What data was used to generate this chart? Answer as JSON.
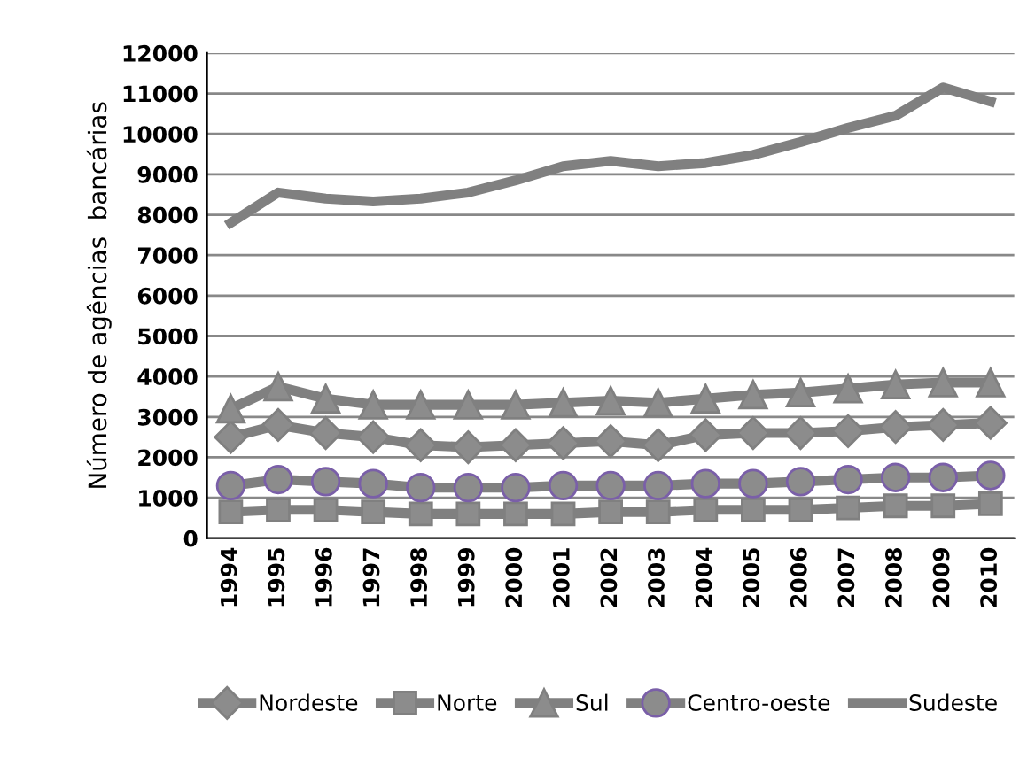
{
  "chart_data": {
    "type": "line",
    "ylabel": "Número de agências  bancárias",
    "categories": [
      "1994",
      "1995",
      "1996",
      "1997",
      "1998",
      "1999",
      "2000",
      "2001",
      "2002",
      "2003",
      "2004",
      "2005",
      "2006",
      "2007",
      "2008",
      "2009",
      "2010"
    ],
    "series": [
      {
        "name": "Nordeste",
        "color": "#808080",
        "marker": "diamond",
        "values": [
          2500,
          2800,
          2600,
          2500,
          2300,
          2250,
          2300,
          2350,
          2400,
          2300,
          2550,
          2600,
          2600,
          2650,
          2750,
          2800,
          2850
        ]
      },
      {
        "name": "Norte",
        "color": "#808080",
        "marker": "square",
        "values": [
          650,
          700,
          700,
          650,
          600,
          600,
          600,
          600,
          650,
          650,
          700,
          700,
          700,
          750,
          800,
          800,
          850
        ]
      },
      {
        "name": "Sul",
        "color": "#808080",
        "marker": "triangle",
        "values": [
          3200,
          3750,
          3450,
          3300,
          3300,
          3300,
          3300,
          3350,
          3400,
          3350,
          3450,
          3550,
          3600,
          3700,
          3800,
          3850,
          3850
        ]
      },
      {
        "name": "Centro-oeste",
        "color": "#808080",
        "marker": "circle",
        "values": [
          1300,
          1450,
          1400,
          1350,
          1250,
          1250,
          1250,
          1300,
          1300,
          1300,
          1350,
          1350,
          1400,
          1450,
          1500,
          1500,
          1550
        ]
      },
      {
        "name": "Sudeste",
        "color": "#808080",
        "marker": "none",
        "values": [
          7800,
          8550,
          8400,
          8330,
          8400,
          8550,
          8850,
          9200,
          9330,
          9200,
          9280,
          9480,
          9800,
          10150,
          10450,
          11150,
          10800
        ]
      }
    ],
    "ylim": [
      0,
      12000
    ],
    "yticks": [
      0,
      1000,
      2000,
      3000,
      4000,
      5000,
      6000,
      7000,
      8000,
      9000,
      10000,
      11000,
      12000
    ],
    "grid": "y",
    "legend": "bottom"
  }
}
